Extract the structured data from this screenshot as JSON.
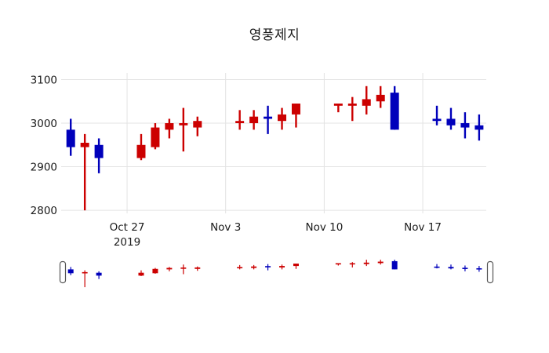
{
  "chart_data": {
    "type": "candlestick",
    "title": "영풍제지",
    "legend_position": "none",
    "grid": true,
    "grid_color": "#e3e3e3",
    "text_color": "#1a1a1a",
    "increasing_color": "#cc0000",
    "decreasing_color": "#0000bb",
    "ylim": [
      2780,
      3115
    ],
    "y_ticks": [
      3100,
      3000,
      2900,
      2800
    ],
    "x_start": "2019-10-23",
    "x_ticks": [
      {
        "date": "2019-10-27",
        "lines": [
          "Oct 27",
          "2019"
        ]
      },
      {
        "date": "2019-11-03",
        "lines": [
          "Nov 3"
        ]
      },
      {
        "date": "2019-11-10",
        "lines": [
          "Nov 10"
        ]
      },
      {
        "date": "2019-11-17",
        "lines": [
          "Nov 17"
        ]
      }
    ],
    "rangeslider": {
      "enabled": true,
      "handles": [
        "left",
        "right"
      ]
    },
    "series": [
      {
        "date": "2019-10-23",
        "open": 2985,
        "high": 3010,
        "low": 2925,
        "close": 2945
      },
      {
        "date": "2019-10-24",
        "open": 2945,
        "high": 2975,
        "low": 2800,
        "close": 2955
      },
      {
        "date": "2019-10-25",
        "open": 2950,
        "high": 2965,
        "low": 2885,
        "close": 2920
      },
      {
        "date": "2019-10-28",
        "open": 2920,
        "high": 2975,
        "low": 2915,
        "close": 2950
      },
      {
        "date": "2019-10-29",
        "open": 2945,
        "high": 3000,
        "low": 2940,
        "close": 2990
      },
      {
        "date": "2019-10-30",
        "open": 2985,
        "high": 3010,
        "low": 2965,
        "close": 3000
      },
      {
        "date": "2019-10-31",
        "open": 2995,
        "high": 3035,
        "low": 2935,
        "close": 3000
      },
      {
        "date": "2019-11-01",
        "open": 2990,
        "high": 3015,
        "low": 2970,
        "close": 3005
      },
      {
        "date": "2019-11-04",
        "open": 3000,
        "high": 3030,
        "low": 2985,
        "close": 3005
      },
      {
        "date": "2019-11-05",
        "open": 3000,
        "high": 3030,
        "low": 2985,
        "close": 3015
      },
      {
        "date": "2019-11-06",
        "open": 3015,
        "high": 3040,
        "low": 2975,
        "close": 3010
      },
      {
        "date": "2019-11-07",
        "open": 3005,
        "high": 3035,
        "low": 2985,
        "close": 3020
      },
      {
        "date": "2019-11-08",
        "open": 3020,
        "high": 3045,
        "low": 2990,
        "close": 3045
      },
      {
        "date": "2019-11-11",
        "open": 3040,
        "high": 3045,
        "low": 3025,
        "close": 3045
      },
      {
        "date": "2019-11-12",
        "open": 3040,
        "high": 3060,
        "low": 3005,
        "close": 3045
      },
      {
        "date": "2019-11-13",
        "open": 3040,
        "high": 3085,
        "low": 3020,
        "close": 3055
      },
      {
        "date": "2019-11-14",
        "open": 3050,
        "high": 3085,
        "low": 3035,
        "close": 3065
      },
      {
        "date": "2019-11-15",
        "open": 3070,
        "high": 3085,
        "low": 2985,
        "close": 2985
      },
      {
        "date": "2019-11-18",
        "open": 3010,
        "high": 3040,
        "low": 2995,
        "close": 3005
      },
      {
        "date": "2019-11-19",
        "open": 3010,
        "high": 3035,
        "low": 2985,
        "close": 2995
      },
      {
        "date": "2019-11-20",
        "open": 3000,
        "high": 3025,
        "low": 2965,
        "close": 2990
      },
      {
        "date": "2019-11-21",
        "open": 2995,
        "high": 3020,
        "low": 2960,
        "close": 2985
      }
    ]
  }
}
